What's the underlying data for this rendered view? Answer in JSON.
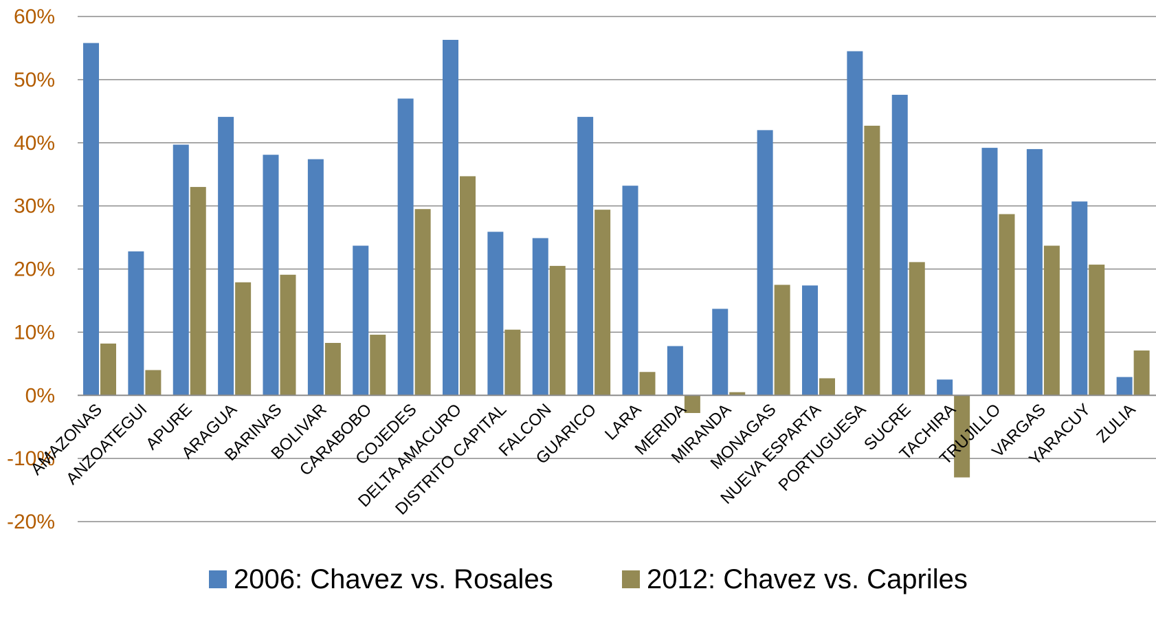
{
  "chart_data": {
    "type": "bar",
    "title": "",
    "xlabel": "",
    "ylabel": "",
    "ylim": [
      -0.2,
      0.6
    ],
    "yticks": [
      -0.2,
      -0.1,
      0,
      0.1,
      0.2,
      0.3,
      0.4,
      0.5,
      0.6
    ],
    "ytick_labels": [
      "-20%",
      "-10%",
      "0%",
      "10%",
      "20%",
      "30%",
      "40%",
      "50%",
      "60%"
    ],
    "grid": true,
    "legend_position": "bottom",
    "categories": [
      "AMAZONAS",
      "ANZOATEGUI",
      "APURE",
      "ARAGUA",
      "BARINAS",
      "BOLIVAR",
      "CARABOBO",
      "COJEDES",
      "DELTA AMACURO",
      "DISTRITO CAPITAL",
      "FALCON",
      "GUARICO",
      "LARA",
      "MERIDA",
      "MIRANDA",
      "MONAGAS",
      "NUEVA ESPARTA",
      "PORTUGUESA",
      "SUCRE",
      "TACHIRA",
      "TRUJILLO",
      "VARGAS",
      "YARACUY",
      "ZULIA"
    ],
    "series": [
      {
        "name": "2006: Chavez vs. Rosales",
        "color": "#4f81bd",
        "values": [
          0.558,
          0.228,
          0.397,
          0.441,
          0.381,
          0.374,
          0.237,
          0.47,
          0.563,
          0.259,
          0.249,
          0.441,
          0.332,
          0.078,
          0.137,
          0.42,
          0.174,
          0.545,
          0.476,
          0.025,
          0.392,
          0.39,
          0.307,
          0.029
        ]
      },
      {
        "name": "2012: Chavez vs. Capriles",
        "color": "#948a54",
        "values": [
          0.082,
          0.04,
          0.33,
          0.179,
          0.191,
          0.083,
          0.096,
          0.295,
          0.347,
          0.104,
          0.205,
          0.294,
          0.037,
          -0.028,
          0.005,
          0.175,
          0.027,
          0.427,
          0.211,
          -0.13,
          0.287,
          0.237,
          0.207,
          0.071
        ]
      }
    ]
  }
}
